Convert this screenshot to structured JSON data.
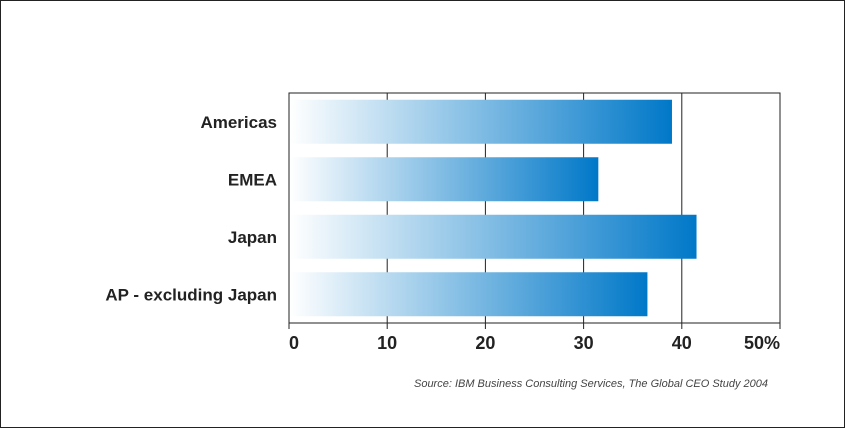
{
  "chart_data": {
    "type": "bar",
    "orientation": "horizontal",
    "categories": [
      "Americas",
      "EMEA",
      "Japan",
      "AP - excluding Japan"
    ],
    "values": [
      39,
      31.5,
      41.5,
      36.5
    ],
    "x_ticks": [
      "0",
      "10",
      "20",
      "30",
      "40",
      "50%"
    ],
    "xlim": [
      0,
      50
    ],
    "grid": "vertical",
    "bar_gradient": [
      "#ffffff",
      "#0078c8"
    ],
    "source": "Source: IBM Business Consulting Services, The Global CEO Study 2004"
  }
}
